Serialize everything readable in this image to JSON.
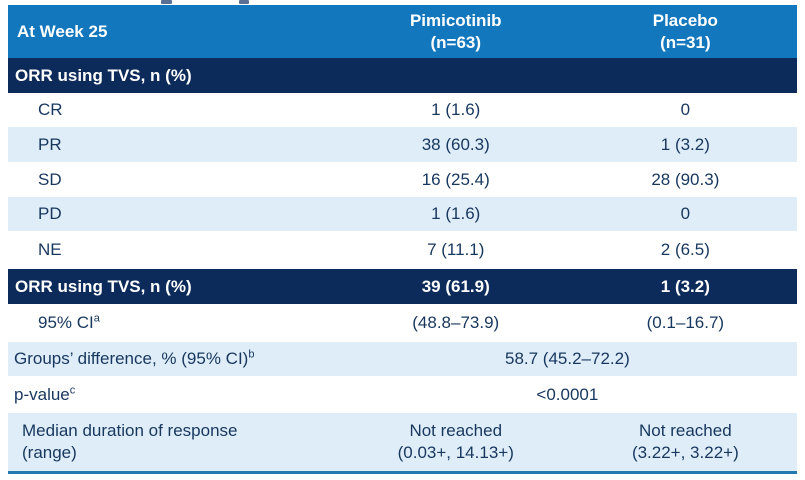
{
  "table": {
    "header": {
      "row_label": "At Week 25",
      "columns": [
        {
          "name": "Pimicotinib",
          "n": "(n=63)"
        },
        {
          "name": "Placebo",
          "n": "(n=31)"
        }
      ]
    },
    "section_band": {
      "label": "ORR using TVS, n (%)"
    },
    "rows": [
      {
        "label": "CR",
        "values": [
          "1 (1.6)",
          "0"
        ]
      },
      {
        "label": "PR",
        "values": [
          "38 (60.3)",
          "1 (3.2)"
        ]
      },
      {
        "label": "SD",
        "values": [
          "16 (25.4)",
          "28 (90.3)"
        ]
      },
      {
        "label": "PD",
        "values": [
          "1 (1.6)",
          "0"
        ]
      },
      {
        "label": "NE",
        "values": [
          "7 (11.1)",
          "2 (6.5)"
        ]
      }
    ],
    "summary_band": {
      "label": "ORR using TVS, n (%)",
      "values": [
        "39 (61.9)",
        "1 (3.2)"
      ]
    },
    "ci_row": {
      "label": "95% CI",
      "superscript": "a",
      "values": [
        "(48.8–73.9)",
        "(0.1–16.7)"
      ]
    },
    "groups_row": {
      "label": "Groups’ difference, % (95% CI)",
      "superscript": "b",
      "value": "58.7 (45.2–72.2)"
    },
    "pvalue_row": {
      "label": "p-value",
      "superscript": "c",
      "value": "<0.0001"
    },
    "median_row": {
      "label_line1": "Median duration of response",
      "label_line2": "(range)",
      "pimicotinib_line1": "Not reached",
      "pimicotinib_line2": "(0.03+, 14.13+)",
      "placebo_line1": "Not reached",
      "placebo_line2": "(3.22+, 3.22+)"
    }
  },
  "colors": {
    "header_blue": "#1377BD",
    "navy_band": "#0C2B5B",
    "zebra_light_blue": "#DFEDF8",
    "text_navy": "#17375E",
    "bottom_rule": "#2579AE"
  }
}
